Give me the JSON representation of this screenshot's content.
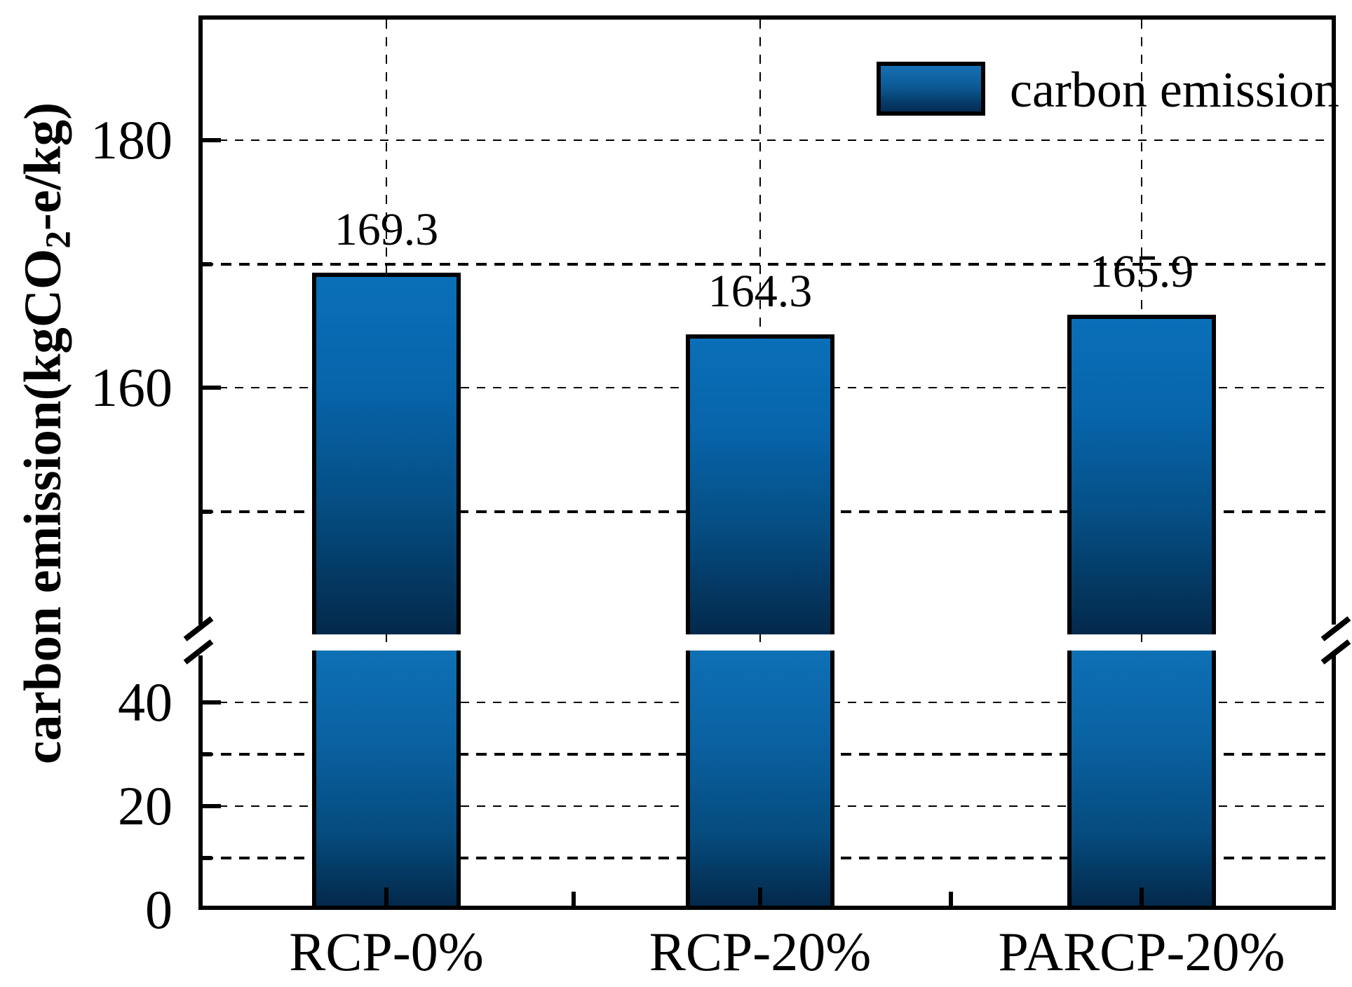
{
  "figure": {
    "legend": {
      "label": "carbon emission"
    },
    "ylabel": {
      "full": "carbon emission(kgCO2-e/kg)",
      "prefix": "carbon emission(kgCO",
      "sub": "2",
      "suffix": "-e/kg)"
    }
  },
  "chart_data": {
    "type": "bar",
    "title": "",
    "categories": [
      "RCP-0%",
      "RCP-20%",
      "PARCP-20%"
    ],
    "values": [
      169.3,
      164.3,
      165.9
    ],
    "value_labels": [
      "169.3",
      "164.3",
      "165.9"
    ],
    "series_name": "carbon emission",
    "ylabel": "carbon emission(kgCO2-e/kg)",
    "xlabel": "",
    "grid": "dashed",
    "legend_position": "upper right",
    "bar_color_top": "#0A6FB8",
    "bar_color_bottom": "#03294B",
    "bar_border_color": "#000000",
    "broken_y_axis": {
      "lower_range": [
        0,
        50
      ],
      "upper_range": [
        140,
        190
      ],
      "lower_ticks": [
        {
          "value": 0,
          "label": "0"
        },
        {
          "value": 10
        },
        {
          "value": 20,
          "label": "20"
        },
        {
          "value": 30
        },
        {
          "value": 40,
          "label": "40"
        }
      ],
      "upper_ticks": [
        {
          "value": 150
        },
        {
          "value": 160,
          "label": "160"
        },
        {
          "value": 170
        },
        {
          "value": 180,
          "label": "180"
        }
      ]
    }
  }
}
